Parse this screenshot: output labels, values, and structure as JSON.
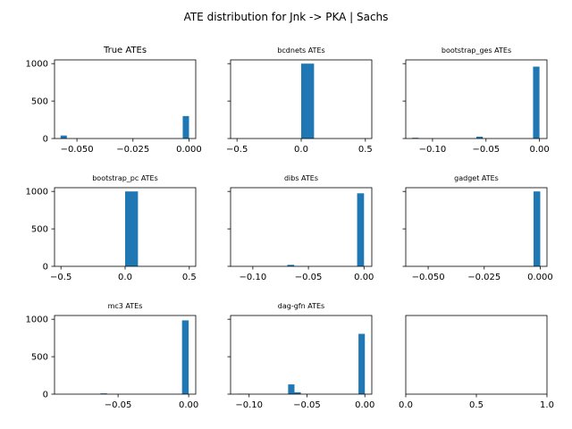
{
  "figure": {
    "title": "ATE distribution for Jnk -> PKA | Sachs",
    "bar_color": "#1f77b4"
  },
  "chart_data": [
    {
      "type": "bar",
      "title": "True ATEs",
      "xlim": [
        -0.06,
        0.003
      ],
      "ylim": [
        0,
        1050
      ],
      "xticks": [
        -0.05,
        -0.025,
        0.0
      ],
      "xtick_labels": [
        "−0.050",
        "−0.025",
        "0.000"
      ],
      "yticks": [
        0,
        500,
        1000
      ],
      "ytick_labels": [
        "0",
        "500",
        "1000"
      ],
      "show_yticklabels": true,
      "bars": [
        {
          "x0": -0.0573,
          "x1": -0.0545,
          "value": 40
        },
        {
          "x0": -0.0028,
          "x1": 0.0,
          "value": 300
        }
      ]
    },
    {
      "type": "bar",
      "title": "bcdnets ATEs",
      "xlim": [
        -0.55,
        0.55
      ],
      "ylim": [
        0,
        1050
      ],
      "xticks": [
        -0.5,
        0.0,
        0.5
      ],
      "xtick_labels": [
        "−0.5",
        "0.0",
        "0.5"
      ],
      "yticks": [
        0,
        500,
        1000
      ],
      "ytick_labels": [
        "",
        "",
        ""
      ],
      "show_yticklabels": false,
      "bars": [
        {
          "x0": 0.0,
          "x1": 0.1,
          "value": 1000
        }
      ]
    },
    {
      "type": "bar",
      "title": "bootstrap_ges ATEs",
      "xlim": [
        -0.125,
        0.007
      ],
      "ylim": [
        0,
        1050
      ],
      "xticks": [
        -0.1,
        -0.05,
        0.0
      ],
      "xtick_labels": [
        "−0.10",
        "−0.05",
        "0.00"
      ],
      "yticks": [
        0,
        500,
        1000
      ],
      "ytick_labels": [
        "",
        "",
        ""
      ],
      "show_yticklabels": false,
      "bars": [
        {
          "x0": -0.119,
          "x1": -0.113,
          "value": 10
        },
        {
          "x0": -0.059,
          "x1": -0.053,
          "value": 25
        },
        {
          "x0": -0.006,
          "x1": 0.0,
          "value": 960
        }
      ]
    },
    {
      "type": "bar",
      "title": "bootstrap_pc ATEs",
      "xlim": [
        -0.55,
        0.55
      ],
      "ylim": [
        0,
        1050
      ],
      "xticks": [
        -0.5,
        0.0,
        0.5
      ],
      "xtick_labels": [
        "−0.5",
        "0.0",
        "0.5"
      ],
      "yticks": [
        0,
        500,
        1000
      ],
      "ytick_labels": [
        "0",
        "500",
        "1000"
      ],
      "show_yticklabels": true,
      "bars": [
        {
          "x0": 0.0,
          "x1": 0.1,
          "value": 1000
        }
      ]
    },
    {
      "type": "bar",
      "title": "dibs ATEs",
      "xlim": [
        -0.12,
        0.007
      ],
      "ylim": [
        0,
        1050
      ],
      "xticks": [
        -0.1,
        -0.05,
        0.0
      ],
      "xtick_labels": [
        "−0.10",
        "−0.05",
        "0.00"
      ],
      "yticks": [
        0,
        500,
        1000
      ],
      "ytick_labels": [
        "",
        "",
        ""
      ],
      "show_yticklabels": false,
      "bars": [
        {
          "x0": -0.069,
          "x1": -0.0628,
          "value": 20
        },
        {
          "x0": -0.0062,
          "x1": 0.0,
          "value": 975
        }
      ]
    },
    {
      "type": "bar",
      "title": "gadget ATEs",
      "xlim": [
        -0.06,
        0.003
      ],
      "ylim": [
        0,
        1050
      ],
      "xticks": [
        -0.05,
        -0.025,
        0.0
      ],
      "xtick_labels": [
        "−0.050",
        "−0.025",
        "0.000"
      ],
      "yticks": [
        0,
        500,
        1000
      ],
      "ytick_labels": [
        "",
        "",
        ""
      ],
      "show_yticklabels": false,
      "bars": [
        {
          "x0": -0.003,
          "x1": 0.0,
          "value": 1000
        }
      ]
    },
    {
      "type": "bar",
      "title": "mc3 ATEs",
      "xlim": [
        -0.095,
        0.005
      ],
      "ylim": [
        0,
        1050
      ],
      "xticks": [
        -0.05,
        0.0
      ],
      "xtick_labels": [
        "−0.05",
        "0.00"
      ],
      "yticks": [
        0,
        500,
        1000
      ],
      "ytick_labels": [
        "0",
        "500",
        "1000"
      ],
      "show_yticklabels": true,
      "bars": [
        {
          "x0": -0.0625,
          "x1": -0.0578,
          "value": 10
        },
        {
          "x0": -0.0047,
          "x1": 0.0,
          "value": 985
        }
      ]
    },
    {
      "type": "bar",
      "title": "dag-gfn ATEs",
      "xlim": [
        -0.116,
        0.006
      ],
      "ylim": [
        0,
        1050
      ],
      "xticks": [
        -0.1,
        -0.05,
        0.0
      ],
      "xtick_labels": [
        "−0.10",
        "−0.05",
        "0.00"
      ],
      "yticks": [
        0,
        500,
        1000
      ],
      "ytick_labels": [
        "",
        "",
        ""
      ],
      "show_yticklabels": false,
      "bars": [
        {
          "x0": -0.1106,
          "x1": -0.1051,
          "value": 5
        },
        {
          "x0": -0.1051,
          "x1": -0.0995,
          "value": 5
        },
        {
          "x0": -0.0663,
          "x1": -0.0608,
          "value": 130
        },
        {
          "x0": -0.0608,
          "x1": -0.0553,
          "value": 25
        },
        {
          "x0": -0.0055,
          "x1": 0.0,
          "value": 805
        }
      ]
    },
    {
      "type": "bar",
      "title": "",
      "xlim": [
        0,
        1
      ],
      "ylim": [
        0,
        1
      ],
      "xticks": [
        0,
        0.5,
        1
      ],
      "xtick_labels": [
        "0.0",
        "0.5",
        "1.0"
      ],
      "yticks": [],
      "ytick_labels": [],
      "show_yticklabels": false,
      "bars": []
    }
  ]
}
